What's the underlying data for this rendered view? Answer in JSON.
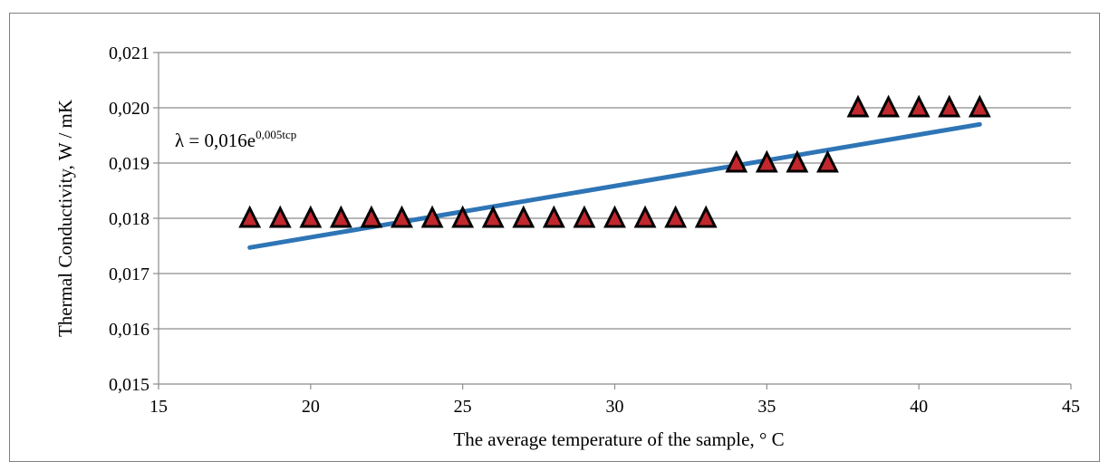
{
  "chart_data": {
    "type": "scatter",
    "xlabel": "The average temperature of the sample, ° C",
    "ylabel": "Thermal Conductivity, W / mK",
    "xlim": [
      15,
      45
    ],
    "ylim": [
      0.015,
      0.021
    ],
    "xticks": [
      15,
      20,
      25,
      30,
      35,
      40,
      45
    ],
    "xtick_labels": [
      "15",
      "20",
      "25",
      "30",
      "35",
      "40",
      "45"
    ],
    "yticks": [
      0.015,
      0.016,
      0.017,
      0.018,
      0.019,
      0.02,
      0.021
    ],
    "ytick_labels": [
      "0,015",
      "0,016",
      "0,017",
      "0,018",
      "0,019",
      "0,020",
      "0,021"
    ],
    "grid": "horizontal",
    "marker": "triangle",
    "marker_color": "#c0282d",
    "trendline_color": "#2e75b6",
    "points": [
      {
        "x": 18,
        "y": 0.018
      },
      {
        "x": 19,
        "y": 0.018
      },
      {
        "x": 20,
        "y": 0.018
      },
      {
        "x": 21,
        "y": 0.018
      },
      {
        "x": 22,
        "y": 0.018
      },
      {
        "x": 23,
        "y": 0.018
      },
      {
        "x": 24,
        "y": 0.018
      },
      {
        "x": 25,
        "y": 0.018
      },
      {
        "x": 26,
        "y": 0.018
      },
      {
        "x": 27,
        "y": 0.018
      },
      {
        "x": 28,
        "y": 0.018
      },
      {
        "x": 29,
        "y": 0.018
      },
      {
        "x": 30,
        "y": 0.018
      },
      {
        "x": 31,
        "y": 0.018
      },
      {
        "x": 32,
        "y": 0.018
      },
      {
        "x": 33,
        "y": 0.018
      },
      {
        "x": 34,
        "y": 0.019
      },
      {
        "x": 35,
        "y": 0.019
      },
      {
        "x": 36,
        "y": 0.019
      },
      {
        "x": 37,
        "y": 0.019
      },
      {
        "x": 38,
        "y": 0.02
      },
      {
        "x": 39,
        "y": 0.02
      },
      {
        "x": 40,
        "y": 0.02
      },
      {
        "x": 41,
        "y": 0.02
      },
      {
        "x": 42,
        "y": 0.02
      }
    ],
    "trendline": {
      "type": "exponential",
      "x_range": [
        18,
        42
      ],
      "y_start": 0.01747,
      "y_end": 0.0197
    },
    "equation": {
      "base": "λ = 0,016e",
      "exponent": "0,005tcp"
    }
  }
}
